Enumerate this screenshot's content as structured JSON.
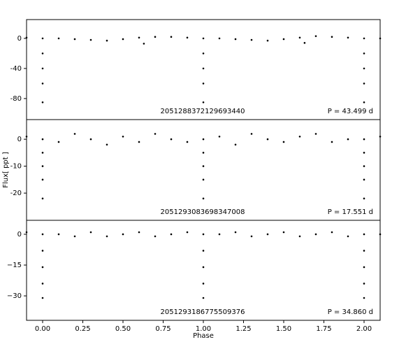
{
  "chart_data": [
    {
      "type": "scatter",
      "label": "2051288372129693440",
      "period_label": "P = 43.499 d",
      "color": "#000000",
      "xlim": [
        -0.1,
        2.1
      ],
      "ylim": [
        -108,
        25
      ],
      "yticks": [
        0,
        {
          "value": -40,
          "label": "-40"
        },
        {
          "value": -80,
          "label": "-80"
        }
      ],
      "x": [
        -0.1,
        0.1,
        0.2,
        0.3,
        0.4,
        0.5,
        0.6,
        0.7,
        0.8,
        0.9,
        1.1,
        1.2,
        1.3,
        1.4,
        1.5,
        1.6,
        1.7,
        1.8,
        1.9,
        2.1,
        0.63,
        1.63,
        0,
        0,
        0,
        0,
        0,
        1,
        1,
        1,
        1,
        1,
        2,
        2,
        2,
        2,
        2
      ],
      "values": [
        1,
        0,
        -1,
        -2,
        -3,
        -1,
        1,
        2,
        2,
        1,
        0,
        -1,
        -2,
        -3,
        -1,
        1,
        3,
        2,
        1,
        0,
        -7,
        -6,
        0,
        -20,
        -40,
        -60,
        -85,
        0,
        -20,
        -40,
        -60,
        -85,
        0,
        -20,
        -40,
        -60,
        -85
      ]
    },
    {
      "type": "scatter",
      "label": "2051293083698347008",
      "period_label": "P = 17.551 d",
      "color": "#000000",
      "ylabel": "Flux[ ppt ]",
      "xlim": [
        -0.1,
        2.1
      ],
      "ylim": [
        -30.1,
        7.3
      ],
      "yticks": [
        0,
        {
          "value": -10,
          "label": "-10"
        },
        {
          "value": -20,
          "label": "-20"
        }
      ],
      "x": [
        -0.1,
        0.1,
        0.2,
        0.3,
        0.4,
        0.5,
        0.6,
        0.7,
        0.8,
        0.9,
        1.1,
        1.2,
        1.3,
        1.4,
        1.5,
        1.6,
        1.7,
        1.8,
        1.9,
        2.1,
        0,
        0,
        0,
        0,
        0,
        1,
        1,
        1,
        1,
        1,
        2,
        2,
        2,
        2,
        2
      ],
      "values": [
        1,
        -1,
        2,
        0,
        -2,
        1,
        -1,
        2,
        0,
        -1,
        1,
        -2,
        2,
        0,
        -1,
        1,
        2,
        -1,
        0,
        1,
        0,
        -5,
        -10,
        -15,
        -22,
        0,
        -5,
        -10,
        -15,
        -22,
        0,
        -5,
        -10,
        -15,
        -22
      ]
    },
    {
      "type": "scatter",
      "label": "2051293186775509376",
      "period_label": "P = 34.860 d",
      "color": "#000000",
      "xlabel": "Phase",
      "xlim": [
        -0.1,
        2.1
      ],
      "ylim": [
        -41.9,
        6.8
      ],
      "xticks": [
        {
          "value": 0,
          "label": "0.00"
        },
        {
          "value": 0.25,
          "label": "0.25"
        },
        {
          "value": 0.5,
          "label": "0.50"
        },
        {
          "value": 0.75,
          "label": "0.75"
        },
        {
          "value": 1,
          "label": "1.00"
        },
        {
          "value": 1.25,
          "label": "1.25"
        },
        {
          "value": 1.5,
          "label": "1.50"
        },
        {
          "value": 1.75,
          "label": "1.75"
        },
        {
          "value": 2,
          "label": "2.00"
        }
      ],
      "yticks": [
        0,
        {
          "value": -15,
          "label": "−15"
        },
        {
          "value": -30,
          "label": "−30"
        }
      ],
      "x": [
        -0.1,
        0.1,
        0.2,
        0.3,
        0.4,
        0.5,
        0.6,
        0.7,
        0.8,
        0.9,
        1.1,
        1.2,
        1.3,
        1.4,
        1.5,
        1.6,
        1.7,
        1.8,
        1.9,
        2.1,
        0,
        0,
        0,
        0,
        0,
        1,
        1,
        1,
        1,
        1,
        2,
        2,
        2,
        2,
        2
      ],
      "values": [
        1,
        0,
        -1,
        1,
        -1,
        0,
        1,
        -1,
        0,
        1,
        0,
        1,
        -1,
        0,
        1,
        -1,
        0,
        1,
        -1,
        0,
        0,
        -8,
        -16,
        -24,
        -31,
        0,
        -8,
        -16,
        -24,
        -31,
        0,
        -8,
        -16,
        -24,
        -31
      ]
    }
  ]
}
